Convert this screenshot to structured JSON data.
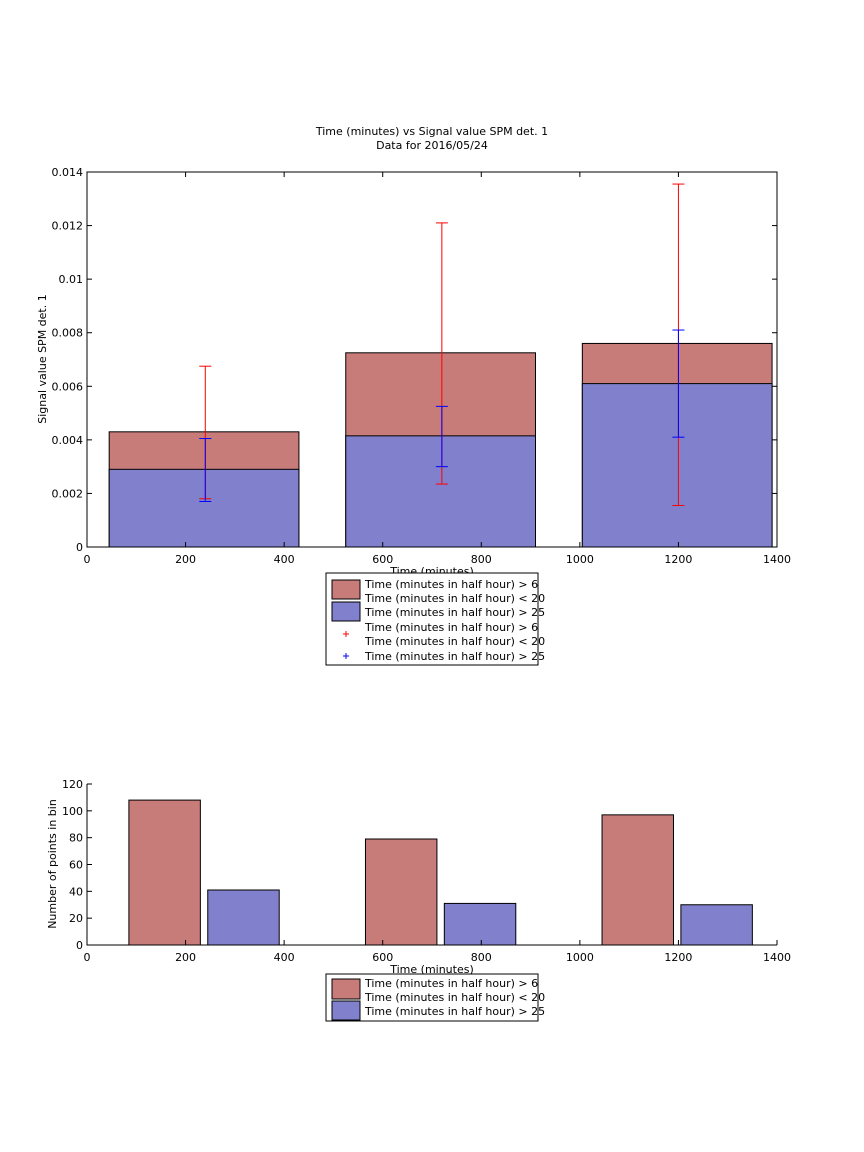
{
  "chart_data": [
    {
      "type": "bar",
      "title": "Time (minutes) vs Signal value SPM det. 1",
      "subtitle": "Data for 2016/05/24",
      "xlabel": "Time (minutes)",
      "ylabel": "Signal value SPM det. 1",
      "xlim": [
        0,
        1400
      ],
      "ylim": [
        0,
        0.014
      ],
      "xticks": [
        0,
        200,
        400,
        600,
        800,
        1000,
        1200,
        1400
      ],
      "yticks": [
        0,
        0.002,
        0.004,
        0.006,
        0.008,
        0.01,
        0.012,
        0.014
      ],
      "xtick_labels": [
        "0",
        "200",
        "400",
        "600",
        "800",
        "1000",
        "1200",
        "1400"
      ],
      "ytick_labels": [
        "0",
        "0.002",
        "0.004",
        "0.006",
        "0.008",
        "0.01",
        "0.012",
        "0.014"
      ],
      "bar_edges": [
        [
          45,
          430
        ],
        [
          525,
          910
        ],
        [
          1005,
          1390
        ]
      ],
      "errorbar_x": [
        240,
        720,
        1200
      ],
      "series": [
        {
          "legend_lines": [
            "Time (minutes in half hour) > 6",
            "Time (minutes in half hour) < 20"
          ],
          "color": "#c87c7a",
          "values": [
            0.0043,
            0.00725,
            0.0076
          ]
        },
        {
          "legend_lines": [
            "Time (minutes in half hour) > 25"
          ],
          "color": "#8080cc",
          "values": [
            0.0029,
            0.00415,
            0.0061
          ]
        }
      ],
      "errorbars": [
        {
          "legend_lines": [
            "Time (minutes in half hour) > 6",
            "Time (minutes in half hour) < 20"
          ],
          "color": "#ff0000",
          "low": [
            0.0018,
            0.00235,
            0.00155
          ],
          "high": [
            0.00675,
            0.0121,
            0.01355
          ]
        },
        {
          "legend_lines": [
            "Time (minutes in half hour) > 25"
          ],
          "color": "#0000ff",
          "low": [
            0.0017,
            0.003,
            0.0041
          ],
          "high": [
            0.00405,
            0.00525,
            0.0081
          ]
        }
      ],
      "legend_placement": "below"
    },
    {
      "type": "bar",
      "xlabel": "Time (minutes)",
      "ylabel": "Number of points in bin",
      "xlim": [
        0,
        1400
      ],
      "ylim": [
        0,
        120
      ],
      "xticks": [
        0,
        200,
        400,
        600,
        800,
        1000,
        1200,
        1400
      ],
      "yticks": [
        0,
        20,
        40,
        60,
        80,
        100,
        120
      ],
      "xtick_labels": [
        "0",
        "200",
        "400",
        "600",
        "800",
        "1000",
        "1200",
        "1400"
      ],
      "ytick_labels": [
        "0",
        "20",
        "40",
        "60",
        "80",
        "100",
        "120"
      ],
      "series": [
        {
          "legend_lines": [
            "Time (minutes in half hour) > 6",
            "Time (minutes in half hour) < 20"
          ],
          "color": "#c87c7a",
          "bar_edges": [
            [
              85,
              230
            ],
            [
              565,
              710
            ],
            [
              1045,
              1190
            ]
          ],
          "values": [
            108,
            79,
            97
          ]
        },
        {
          "legend_lines": [
            "Time (minutes in half hour) > 25"
          ],
          "color": "#8080cc",
          "bar_edges": [
            [
              245,
              390
            ],
            [
              725,
              870
            ],
            [
              1205,
              1350
            ]
          ],
          "values": [
            41,
            31,
            30
          ]
        }
      ],
      "legend_placement": "below"
    }
  ]
}
